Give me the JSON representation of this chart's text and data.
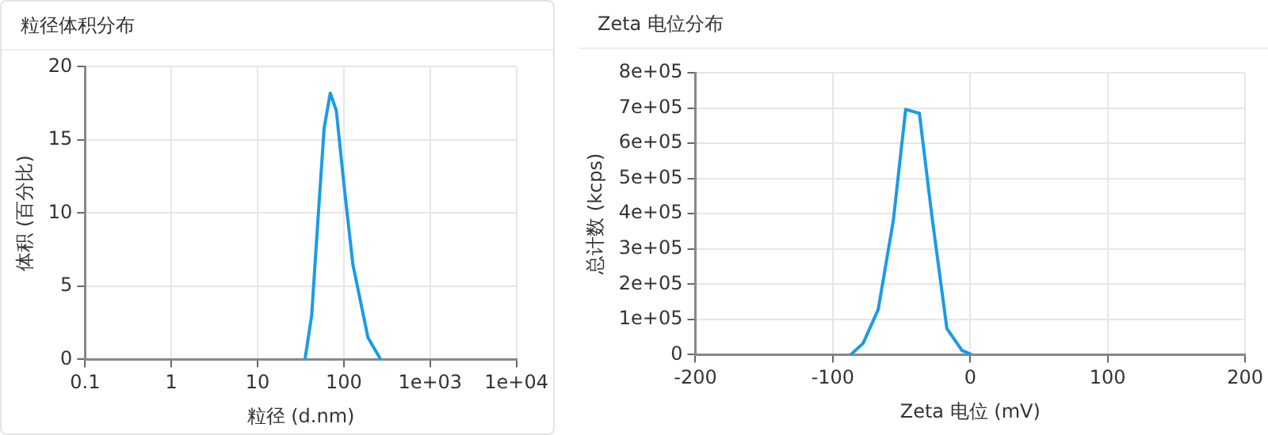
{
  "chart_data": [
    {
      "type": "line",
      "title": "粒径体积分布",
      "xlabel": "粒径 (d.nm)",
      "ylabel": "体积 (百分比)",
      "log": "x",
      "grid": true,
      "legend": false,
      "marker": "none",
      "x": [
        35.4,
        42.3,
        50,
        59,
        69.5,
        81.7,
        100,
        127,
        190,
        267
      ],
      "series": [
        {
          "color": "#1a9be6",
          "values": [
            0,
            3,
            9.5,
            15.8,
            18.2,
            17,
            12,
            6.5,
            1.5,
            0
          ]
        }
      ],
      "xlim": [
        0.1,
        10000
      ],
      "xticks": [
        0.1,
        1,
        10,
        100,
        {
          "value": 1000,
          "label": "1e+03"
        },
        {
          "value": 10000,
          "label": "1e+04"
        }
      ],
      "ylim": [
        0,
        20
      ],
      "yticks": [
        0,
        5,
        10,
        15,
        20
      ]
    },
    {
      "type": "line",
      "title": "Zeta 电位分布",
      "xlabel": "Zeta 电位 (mV)",
      "ylabel": "总计数 (kcps)",
      "grid": true,
      "legend": false,
      "marker": "none",
      "x": [
        -87,
        -78,
        -67,
        -56,
        -47,
        -37,
        -28,
        -17,
        -6,
        1
      ],
      "series": [
        {
          "color": "#1a9be6",
          "values": [
            0,
            32000,
            128000,
            380000,
            696000,
            685000,
            396000,
            74000,
            12000,
            0
          ]
        }
      ],
      "xlim": [
        -200,
        200
      ],
      "xticks": [
        -200,
        -100,
        0,
        100,
        200
      ],
      "ylim": [
        0,
        800000
      ],
      "yticks": [
        0,
        {
          "value": 100000,
          "label": "1e+05"
        },
        {
          "value": 200000,
          "label": "2e+05"
        },
        {
          "value": 300000,
          "label": "3e+05"
        },
        {
          "value": 400000,
          "label": "4e+05"
        },
        {
          "value": 500000,
          "label": "5e+05"
        },
        {
          "value": 600000,
          "label": "6e+05"
        },
        {
          "value": 700000,
          "label": "7e+05"
        },
        {
          "value": 800000,
          "label": "8e+05"
        }
      ]
    }
  ]
}
